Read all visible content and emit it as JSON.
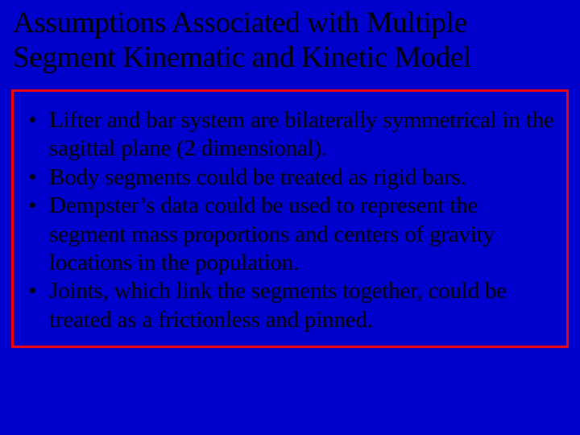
{
  "colors": {
    "background": "#0000cc",
    "text": "#000000",
    "box_border": "#ff0000"
  },
  "typography": {
    "family": "Times New Roman",
    "title_fontsize": 37,
    "body_fontsize": 29
  },
  "title": "Assumptions Associated with Multiple Segment Kinematic and Kinetic Model",
  "bullets": [
    "Lifter and bar system are bilaterally symmetrical in the sagittal plane (2 dimensional).",
    "Body segments could be treated as rigid bars.",
    "Dempster’s data could be used to represent the segment mass proportions and centers of gravity locations in the population.",
    "Joints, which link the segments together, could be treated as a frictionless and pinned."
  ]
}
